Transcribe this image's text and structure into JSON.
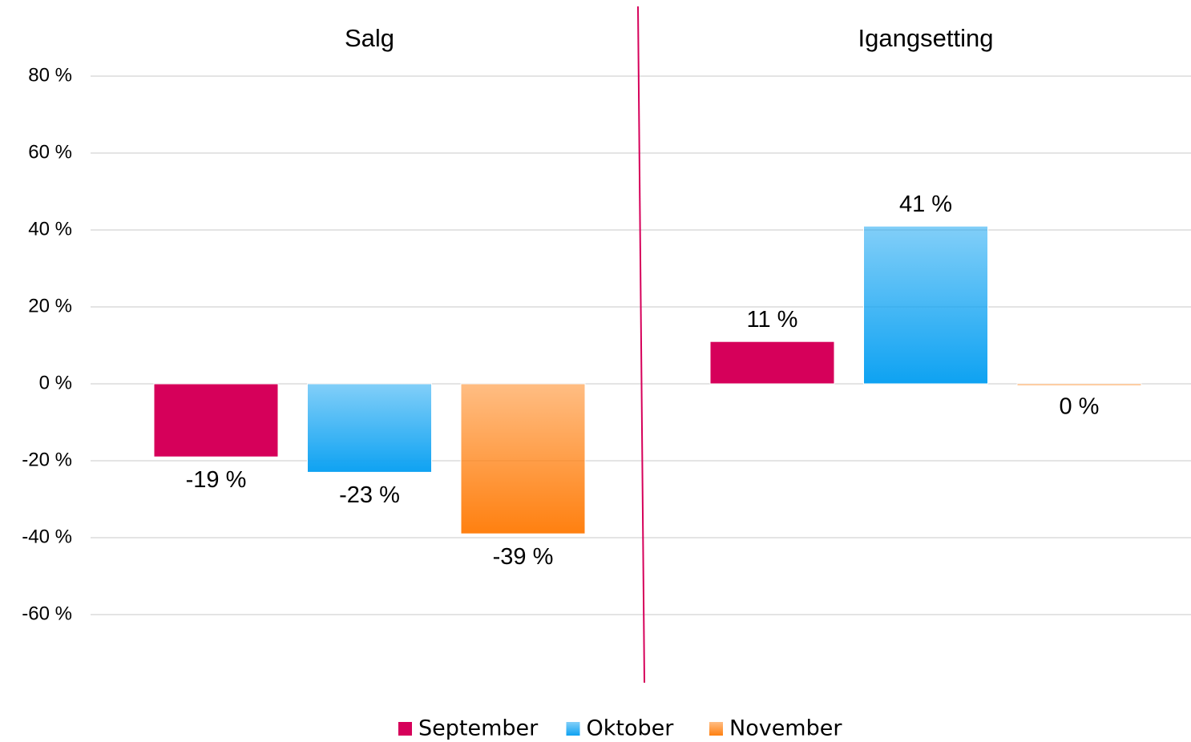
{
  "chart_data": {
    "type": "bar",
    "categories": [
      "Salg",
      "Igangsetting"
    ],
    "series": [
      {
        "name": "September",
        "color": "#d6005a",
        "values": [
          -19,
          11
        ],
        "value_labels": [
          "-19 %",
          "11 %"
        ]
      },
      {
        "name": "Oktober",
        "color": "#0ea2f2",
        "values": [
          -23,
          41
        ],
        "value_labels": [
          "-23 %",
          "41 %"
        ]
      },
      {
        "name": "November",
        "color": "#ff8010",
        "values": [
          -39,
          0
        ],
        "value_labels": [
          "-39 %",
          "0 %"
        ]
      }
    ],
    "ylim": [
      -80,
      80
    ],
    "yticks": [
      {
        "value": -60,
        "label": "-60 %"
      },
      {
        "value": -40,
        "label": "-40 %"
      },
      {
        "value": -20,
        "label": "-20 %"
      },
      {
        "value": 0,
        "label": "0 %"
      },
      {
        "value": 20,
        "label": "20 %"
      },
      {
        "value": 40,
        "label": "40 %"
      },
      {
        "value": 60,
        "label": "60 %"
      },
      {
        "value": 80,
        "label": "80 %"
      }
    ],
    "grid": true,
    "legend": "bottom"
  }
}
